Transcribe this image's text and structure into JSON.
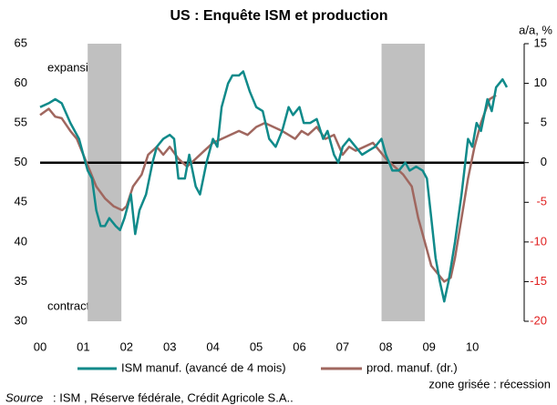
{
  "chart_data": {
    "type": "line",
    "title": "US : Enquête ISM et production",
    "y2_label": "a/a, %",
    "annotations": [
      "expansion",
      "contraction"
    ],
    "recession_note": "zone grisée : récession",
    "source_label": "Source",
    "source": ": ISM , Réserve fédérale, Crédit Agricole S.A..",
    "xlim": [
      2000,
      2011.2
    ],
    "xticks": [
      {
        "value": 2000,
        "label": "00"
      },
      {
        "value": 2001,
        "label": "01"
      },
      {
        "value": 2002,
        "label": "02"
      },
      {
        "value": 2003,
        "label": "03"
      },
      {
        "value": 2004,
        "label": "04"
      },
      {
        "value": 2005,
        "label": "05"
      },
      {
        "value": 2006,
        "label": "06"
      },
      {
        "value": 2007,
        "label": "07"
      },
      {
        "value": 2008,
        "label": "08"
      },
      {
        "value": 2009,
        "label": "09"
      },
      {
        "value": 2010,
        "label": "10"
      }
    ],
    "ylim": [
      30,
      65
    ],
    "yticks": [
      30,
      35,
      40,
      45,
      50,
      55,
      60,
      65
    ],
    "y2lim": [
      -20,
      15
    ],
    "y2ticks": [
      -20,
      -15,
      -10,
      -5,
      0,
      5,
      10,
      15
    ],
    "y2_negative_color": "#e02020",
    "hline": 50,
    "recessions": [
      [
        2001.1,
        2001.88
      ],
      [
        2007.9,
        2008.9
      ]
    ],
    "recession_color": "#c0c0c0",
    "series": [
      {
        "name": "ISM manuf. (avancé de 4 mois)",
        "color": "#108a8a",
        "x": [
          2000.0,
          2000.2,
          2000.35,
          2000.5,
          2000.7,
          2000.9,
          2001.0,
          2001.1,
          2001.2,
          2001.3,
          2001.4,
          2001.5,
          2001.6,
          2001.75,
          2001.85,
          2001.95,
          2002.05,
          2002.1,
          2002.2,
          2002.3,
          2002.45,
          2002.6,
          2002.7,
          2002.85,
          2003.0,
          2003.1,
          2003.2,
          2003.35,
          2003.45,
          2003.6,
          2003.7,
          2003.85,
          2004.0,
          2004.1,
          2004.2,
          2004.35,
          2004.45,
          2004.6,
          2004.7,
          2004.85,
          2005.0,
          2005.15,
          2005.3,
          2005.45,
          2005.6,
          2005.75,
          2005.85,
          2006.0,
          2006.1,
          2006.25,
          2006.4,
          2006.55,
          2006.65,
          2006.8,
          2006.9,
          2007.0,
          2007.15,
          2007.3,
          2007.45,
          2007.6,
          2007.75,
          2007.9,
          2008.0,
          2008.15,
          2008.3,
          2008.45,
          2008.55,
          2008.7,
          2008.85,
          2008.95,
          2009.05,
          2009.15,
          2009.25,
          2009.35,
          2009.45,
          2009.6,
          2009.75,
          2009.9,
          2010.0,
          2010.1,
          2010.2,
          2010.35,
          2010.45,
          2010.55,
          2010.7,
          2010.8
        ],
        "values": [
          57,
          57.5,
          58,
          57.5,
          55,
          53,
          51,
          49,
          48,
          44,
          42,
          42,
          43,
          42,
          41.5,
          43,
          45,
          46,
          41,
          44,
          46,
          50,
          52,
          53,
          53.5,
          53,
          48,
          48,
          51,
          47,
          46,
          50,
          53,
          52,
          57,
          60,
          61,
          61,
          61.5,
          59,
          57,
          56.5,
          53,
          52,
          54,
          57,
          56,
          57,
          55,
          55,
          55.5,
          53,
          54,
          51,
          50,
          52,
          53,
          52,
          51,
          51.5,
          52,
          53,
          51,
          49,
          49,
          50,
          49,
          49.5,
          49,
          48,
          43,
          38,
          35,
          32.5,
          35,
          40,
          46,
          53,
          52,
          55,
          54,
          58,
          56.5,
          59.5,
          60.5,
          59.5
        ]
      },
      {
        "name": "prod. manuf. (dr.)",
        "color": "#a0675f",
        "axis": "y2",
        "x": [
          2000.0,
          2000.2,
          2000.35,
          2000.5,
          2000.7,
          2000.85,
          2001.0,
          2001.15,
          2001.3,
          2001.5,
          2001.7,
          2001.9,
          2002.0,
          2002.15,
          2002.35,
          2002.5,
          2002.7,
          2002.85,
          2003.0,
          2003.2,
          2003.4,
          2003.6,
          2003.8,
          2004.0,
          2004.2,
          2004.4,
          2004.6,
          2004.8,
          2005.0,
          2005.2,
          2005.4,
          2005.6,
          2005.75,
          2005.9,
          2006.05,
          2006.2,
          2006.4,
          2006.6,
          2006.8,
          2007.0,
          2007.15,
          2007.3,
          2007.5,
          2007.7,
          2007.85,
          2008.0,
          2008.2,
          2008.4,
          2008.6,
          2008.75,
          2008.9,
          2009.05,
          2009.2,
          2009.35,
          2009.5,
          2009.6,
          2009.75,
          2009.9,
          2010.05,
          2010.2,
          2010.4,
          2010.55
        ],
        "values": [
          6,
          6.8,
          5.8,
          5.6,
          4,
          3,
          1,
          -1,
          -3,
          -4.5,
          -5.5,
          -6,
          -5.5,
          -3,
          -1.5,
          1,
          2,
          1,
          2,
          0.5,
          -0.5,
          0.5,
          1.5,
          2.5,
          3,
          3.5,
          4,
          3.5,
          4.5,
          5,
          4.5,
          4,
          3.5,
          3,
          4,
          3.5,
          4.5,
          3,
          3.5,
          1,
          2,
          1.5,
          2,
          2.5,
          1.5,
          0.5,
          -0.5,
          -1.5,
          -3,
          -7,
          -10,
          -13,
          -14,
          -15,
          -14.5,
          -12,
          -7,
          -2,
          2,
          5,
          8,
          8.5
        ]
      }
    ]
  }
}
